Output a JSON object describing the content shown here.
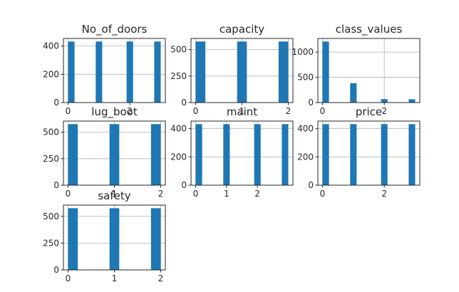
{
  "chart_data": [
    {
      "type": "bar",
      "title": "No_of_doors",
      "x": [
        0,
        1,
        2,
        3
      ],
      "values": [
        432,
        432,
        432,
        432
      ],
      "xlim": [
        -0.15,
        3.15
      ],
      "ylim": [
        0,
        453.6
      ],
      "xticks": [
        {
          "v": 0,
          "label": "0"
        },
        {
          "v": 2,
          "label": "2"
        }
      ],
      "yticks": [
        {
          "v": 0,
          "label": "0"
        },
        {
          "v": 200,
          "label": "200"
        },
        {
          "v": 400,
          "label": "400"
        }
      ],
      "grid": true
    },
    {
      "type": "bar",
      "title": "capacity",
      "x": [
        0,
        1,
        2
      ],
      "values": [
        576,
        576,
        576
      ],
      "xlim": [
        -0.1,
        2.1
      ],
      "ylim": [
        0,
        604.8
      ],
      "xticks": [
        {
          "v": 0,
          "label": "0"
        },
        {
          "v": 1,
          "label": "1"
        },
        {
          "v": 2,
          "label": "2"
        }
      ],
      "yticks": [
        {
          "v": 0,
          "label": "0"
        },
        {
          "v": 250,
          "label": "250"
        },
        {
          "v": 500,
          "label": "500"
        }
      ],
      "grid": true
    },
    {
      "type": "bar",
      "title": "class_values",
      "x": [
        0,
        1,
        2,
        3
      ],
      "values": [
        1210,
        384,
        69,
        65
      ],
      "xlim": [
        -0.15,
        3.15
      ],
      "ylim": [
        0,
        1270.5
      ],
      "xticks": [
        {
          "v": 0,
          "label": "0"
        },
        {
          "v": 2,
          "label": "2"
        }
      ],
      "yticks": [
        {
          "v": 0,
          "label": "0"
        },
        {
          "v": 500,
          "label": "500"
        },
        {
          "v": 1000,
          "label": "1000"
        }
      ],
      "grid": true
    },
    {
      "type": "bar",
      "title": "lug_boot",
      "x": [
        0,
        1,
        2
      ],
      "values": [
        576,
        576,
        576
      ],
      "xlim": [
        -0.1,
        2.1
      ],
      "ylim": [
        0,
        604.8
      ],
      "xticks": [
        {
          "v": 0,
          "label": "0"
        },
        {
          "v": 1,
          "label": "1"
        },
        {
          "v": 2,
          "label": "2"
        }
      ],
      "yticks": [
        {
          "v": 0,
          "label": "0"
        },
        {
          "v": 250,
          "label": "250"
        },
        {
          "v": 500,
          "label": "500"
        }
      ],
      "grid": true
    },
    {
      "type": "bar",
      "title": "maint",
      "x": [
        0,
        1,
        2,
        3
      ],
      "values": [
        432,
        432,
        432,
        432
      ],
      "xlim": [
        -0.15,
        3.15
      ],
      "ylim": [
        0,
        453.6
      ],
      "xticks": [
        {
          "v": 0,
          "label": "0"
        },
        {
          "v": 1,
          "label": "1"
        },
        {
          "v": 2,
          "label": "2"
        }
      ],
      "yticks": [
        {
          "v": 0,
          "label": "0"
        },
        {
          "v": 200,
          "label": "200"
        },
        {
          "v": 400,
          "label": "400"
        }
      ],
      "grid": true
    },
    {
      "type": "bar",
      "title": "price",
      "x": [
        0,
        1,
        2,
        3
      ],
      "values": [
        432,
        432,
        432,
        432
      ],
      "xlim": [
        -0.15,
        3.15
      ],
      "ylim": [
        0,
        453.6
      ],
      "xticks": [
        {
          "v": 0,
          "label": "0"
        },
        {
          "v": 2,
          "label": "2"
        }
      ],
      "yticks": [
        {
          "v": 0,
          "label": "0"
        },
        {
          "v": 200,
          "label": "200"
        },
        {
          "v": 400,
          "label": "400"
        }
      ],
      "grid": true
    },
    {
      "type": "bar",
      "title": "safety",
      "x": [
        0,
        1,
        2
      ],
      "values": [
        576,
        576,
        576
      ],
      "xlim": [
        -0.1,
        2.1
      ],
      "ylim": [
        0,
        604.8
      ],
      "xticks": [
        {
          "v": 0,
          "label": "0"
        },
        {
          "v": 1,
          "label": "1"
        },
        {
          "v": 2,
          "label": "2"
        }
      ],
      "yticks": [
        {
          "v": 0,
          "label": "0"
        },
        {
          "v": 250,
          "label": "250"
        },
        {
          "v": 500,
          "label": "500"
        }
      ],
      "grid": true
    }
  ],
  "colors": {
    "bar": "#1f77b4",
    "grid": "#b0b0b0",
    "axis": "#262626",
    "text": "#262626"
  }
}
